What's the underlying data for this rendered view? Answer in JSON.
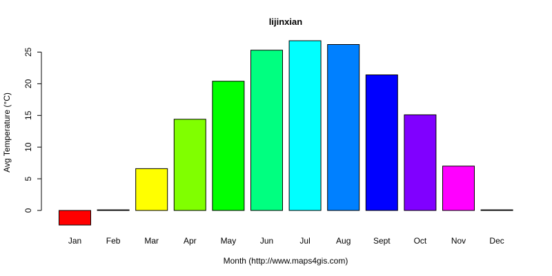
{
  "chart_data": {
    "type": "bar",
    "title": "lijinxian",
    "xlabel": "Month (http://www.maps4gis.com)",
    "ylabel": "Avg Temperature (°C)",
    "categories": [
      "Jan",
      "Feb",
      "Mar",
      "Apr",
      "May",
      "Jun",
      "Jul",
      "Aug",
      "Sept",
      "Oct",
      "Nov",
      "Dec"
    ],
    "values": [
      -2.3,
      0.1,
      6.6,
      14.4,
      20.4,
      25.3,
      26.8,
      26.2,
      21.4,
      15.1,
      7.0,
      0.1
    ],
    "colors": [
      "#ff0000",
      "#ff8000",
      "#ffff00",
      "#80ff00",
      "#00ff00",
      "#00ff80",
      "#00ffff",
      "#0080ff",
      "#0000ff",
      "#8000ff",
      "#ff00ff",
      "#ff0080"
    ],
    "yticks": [
      0,
      5,
      10,
      15,
      20,
      25
    ],
    "ylim": [
      -2.3,
      26.8
    ],
    "grid": false,
    "legend": "none"
  }
}
